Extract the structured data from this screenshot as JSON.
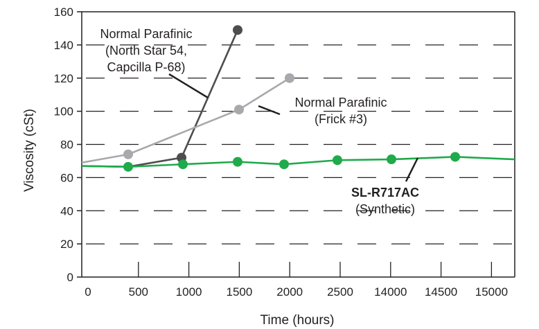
{
  "chart_data": {
    "type": "line",
    "xlabel": "Time (hours)",
    "ylabel": "Viscosity (cSt)",
    "ylim": [
      0,
      160
    ],
    "y_ticks": [
      "0",
      "20",
      "40",
      "60",
      "80",
      "100",
      "120",
      "140",
      "160"
    ],
    "x_ticks": [
      "0",
      "500",
      "1000",
      "1500",
      "2000",
      "2500",
      "14000",
      "14500",
      "15000"
    ],
    "grid": "horizontal dashed",
    "series": [
      {
        "color": "#4d4d4f",
        "x": [
          "0",
          "500",
          "1000",
          "1500"
        ],
        "values": [
          67,
          null,
          72,
          149
        ]
      },
      {
        "color": "#a7a9ac",
        "x": [
          "0",
          "500",
          "1000",
          "1500",
          "2000"
        ],
        "values": [
          69,
          74,
          null,
          101,
          120
        ]
      },
      {
        "color": "#1faa4b",
        "x": [
          "0",
          "500",
          "1000",
          "1500",
          "2000",
          "2500",
          "14000",
          "14500",
          "15000"
        ],
        "values": [
          67,
          66.5,
          68,
          69.5,
          68,
          70.5,
          71,
          72.5,
          71
        ]
      }
    ],
    "annotations": [
      {
        "lines": [
          "Normal Parafinic",
          "(North Star 54,",
          "Capcilla P-68)"
        ]
      },
      {
        "lines": [
          "Normal Parafinic",
          "(Frick #3)"
        ]
      },
      {
        "lines": [
          "SL-R717AC",
          "(Synthetic)"
        ]
      }
    ]
  }
}
